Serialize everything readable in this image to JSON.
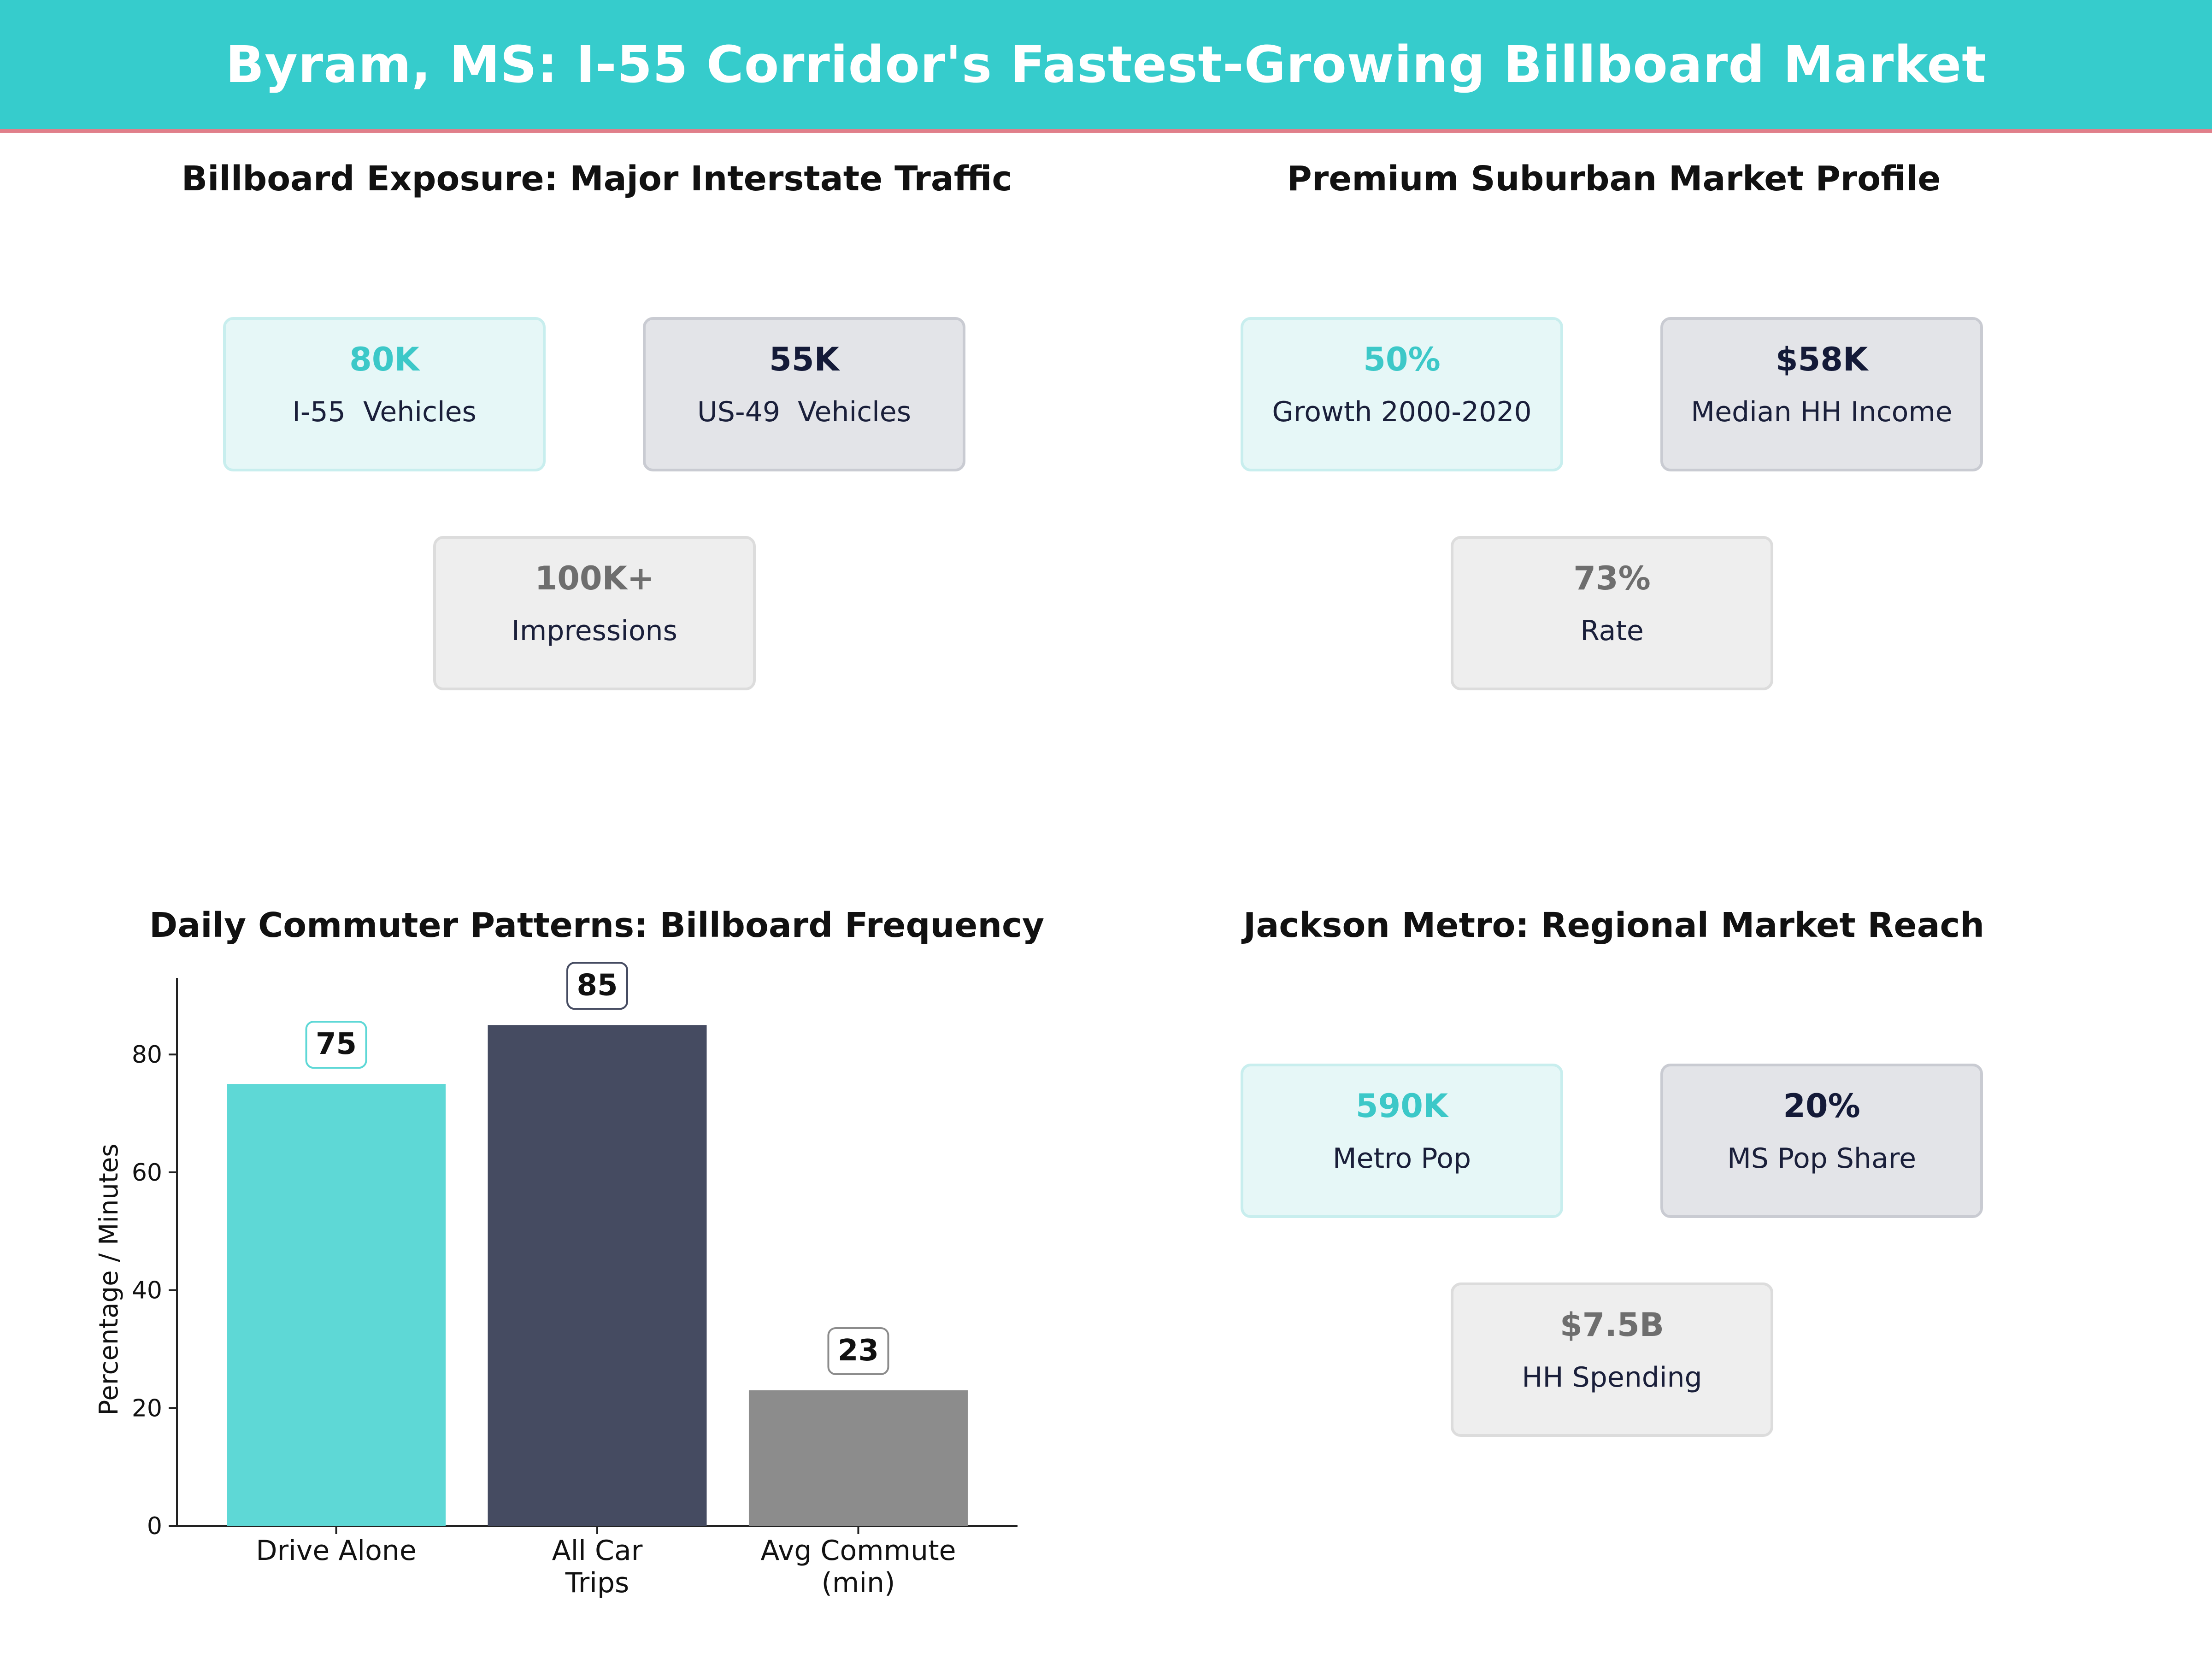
{
  "header": {
    "title": "Byram, MS: I-55 Corridor's Fastest-Growing Billboard Market"
  },
  "panels": [
    {
      "title": "Billboard Exposure: Major Interstate Traffic",
      "cards": [
        {
          "value": "80K",
          "label": "I-55  Vehicles"
        },
        {
          "value": "55K",
          "label": "US-49  Vehicles"
        },
        {
          "value": "100K+",
          "label": "Impressions"
        }
      ]
    },
    {
      "title": "Premium Suburban Market Profile",
      "cards": [
        {
          "value": "50%",
          "label": "Growth 2000-2020"
        },
        {
          "value": "$58K",
          "label": "Median HH Income"
        },
        {
          "value": "73%",
          "label": "Rate"
        }
      ]
    },
    {
      "title": "Daily Commuter Patterns: Billboard Frequency"
    },
    {
      "title": "Jackson Metro: Regional Market Reach",
      "cards": [
        {
          "value": "590K",
          "label": "Metro Pop"
        },
        {
          "value": "20%",
          "label": "MS Pop Share"
        },
        {
          "value": "$7.5B",
          "label": "HH Spending"
        }
      ]
    }
  ],
  "colors": {
    "accent": "#36cccc",
    "navy": "#141a38",
    "gray": "#6e6e6e",
    "bar_teal": "#5ed8d6",
    "bar_navy": "#454b61",
    "bar_gray": "#8c8c8c"
  },
  "chart_data": {
    "type": "bar",
    "title": "Daily Commuter Patterns: Billboard Frequency",
    "categories": [
      "Drive Alone",
      "All Car\nTrips",
      "Avg Commute\n(min)"
    ],
    "values": [
      75,
      85,
      23
    ],
    "data_labels": [
      "75",
      "85",
      "23"
    ],
    "ylabel": "Percentage / Minutes",
    "ylim": [
      0,
      93
    ],
    "yticks": [
      0,
      20,
      40,
      60,
      80
    ],
    "grid": false,
    "bar_colors": [
      "#5ed8d6",
      "#454b61",
      "#8c8c8c"
    ],
    "label_border_colors": [
      "#5ed8d6",
      "#454b61",
      "#8c8c8c"
    ]
  }
}
